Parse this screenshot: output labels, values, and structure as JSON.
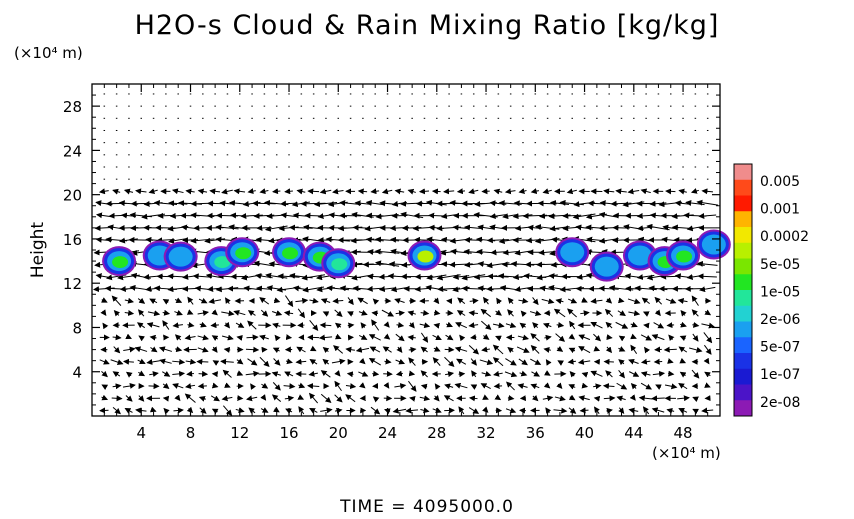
{
  "chart_data": {
    "type": "heatmap",
    "title": "H2O-s Cloud & Rain Mixing Ratio [kg/kg]",
    "xlabel": "",
    "ylabel": "Height",
    "x_unit": "(×10⁴ m)",
    "y_unit": "(×10⁴ m)",
    "footer": "TIME = 4095000.0",
    "xlim": [
      0,
      51
    ],
    "ylim": [
      0,
      30
    ],
    "x_ticks": [
      "4",
      "8",
      "12",
      "16",
      "20",
      "24",
      "28",
      "32",
      "36",
      "40",
      "44",
      "48"
    ],
    "x_tick_values": [
      4,
      8,
      12,
      16,
      20,
      24,
      28,
      32,
      36,
      40,
      44,
      48
    ],
    "y_ticks": [
      "4",
      "8",
      "12",
      "16",
      "20",
      "24",
      "28"
    ],
    "y_tick_values": [
      4,
      8,
      12,
      16,
      20,
      24,
      28
    ],
    "grid": false,
    "legend_placement": "right",
    "colorbar": {
      "labels": [
        "0.005",
        "0.001",
        "0.0002",
        "5e-05",
        "1e-05",
        "2e-06",
        "5e-07",
        "1e-07",
        "2e-08"
      ],
      "colors": [
        "#f08c8c",
        "#ff4a1a",
        "#ff1a00",
        "#ffb400",
        "#f2e800",
        "#b8f000",
        "#7ae600",
        "#22e622",
        "#22e69a",
        "#22d2d2",
        "#1aa0f0",
        "#1a64ff",
        "#1a32e6",
        "#1a1ad2",
        "#4b14c8",
        "#8c1ab4"
      ]
    },
    "cloud_cells": [
      {
        "x": 2.2,
        "y": 14.0,
        "value": "1e-05"
      },
      {
        "x": 5.5,
        "y": 14.5,
        "value": "5e-07"
      },
      {
        "x": 7.2,
        "y": 14.4,
        "value": "5e-07"
      },
      {
        "x": 10.5,
        "y": 14.0,
        "value": "2e-06"
      },
      {
        "x": 12.2,
        "y": 14.8,
        "value": "1e-05"
      },
      {
        "x": 16.0,
        "y": 14.8,
        "value": "1e-05"
      },
      {
        "x": 18.5,
        "y": 14.4,
        "value": "1e-05"
      },
      {
        "x": 20.0,
        "y": 13.8,
        "value": "2e-06"
      },
      {
        "x": 27.0,
        "y": 14.5,
        "value": "5e-05"
      },
      {
        "x": 39.0,
        "y": 14.8,
        "value": "5e-07"
      },
      {
        "x": 41.8,
        "y": 13.5,
        "value": "5e-07"
      },
      {
        "x": 44.5,
        "y": 14.5,
        "value": "5e-07"
      },
      {
        "x": 46.5,
        "y": 14.0,
        "value": "1e-05"
      },
      {
        "x": 48.0,
        "y": 14.5,
        "value": "1e-05"
      },
      {
        "x": 50.5,
        "y": 15.5,
        "value": "5e-07"
      }
    ]
  }
}
